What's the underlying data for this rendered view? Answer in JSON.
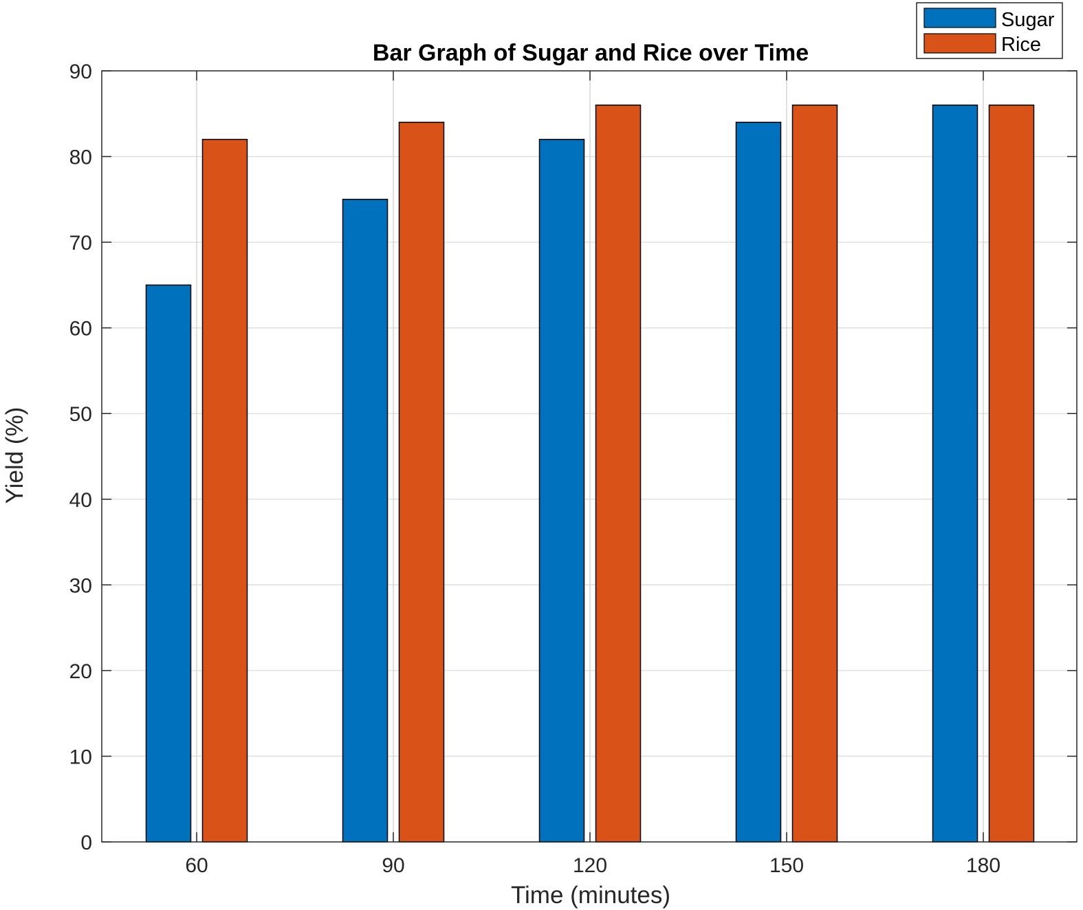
{
  "chart_data": {
    "type": "bar",
    "title": "Bar Graph of Sugar and Rice over Time",
    "xlabel": "Time (minutes)",
    "ylabel": "Yield (%)",
    "categories": [
      "60",
      "90",
      "120",
      "150",
      "180"
    ],
    "series": [
      {
        "name": "Sugar",
        "color": "#0072BD",
        "values": [
          65,
          75,
          82,
          84,
          86
        ]
      },
      {
        "name": "Rice",
        "color": "#D95319",
        "values": [
          82,
          84,
          86,
          86,
          86
        ]
      }
    ],
    "ylim": [
      0,
      90
    ],
    "yticks": [
      0,
      10,
      20,
      30,
      40,
      50,
      60,
      70,
      80,
      90
    ],
    "grid": true,
    "legend_position": "top-right"
  }
}
